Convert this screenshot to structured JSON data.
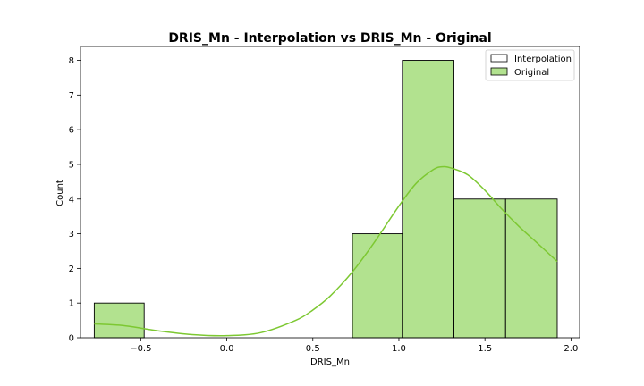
{
  "chart_data": {
    "type": "bar",
    "title": "DRIS_Mn - Interpolation vs DRIS_Mn - Original",
    "xlabel": "DRIS_Mn",
    "ylabel": "Count",
    "xlim": [
      -0.85,
      2.05
    ],
    "ylim": [
      0,
      8.4
    ],
    "x_ticks": [
      -0.5,
      0.0,
      0.5,
      1.0,
      1.5,
      2.0
    ],
    "x_tick_labels": [
      "−0.5",
      "0.0",
      "0.5",
      "1.0",
      "1.5",
      "2.0"
    ],
    "y_ticks": [
      0,
      1,
      2,
      3,
      4,
      5,
      6,
      7,
      8
    ],
    "y_tick_labels": [
      "0",
      "1",
      "2",
      "3",
      "4",
      "5",
      "6",
      "7",
      "8"
    ],
    "grid": false,
    "legend_position": "top-right",
    "series": [
      {
        "name": "Interpolation",
        "color": "#ffffff",
        "bins": []
      },
      {
        "name": "Original",
        "color": "#b2e28f",
        "edge_color": "#000000",
        "bins": [
          {
            "x0": -0.77,
            "x1": -0.48,
            "count": 1
          },
          {
            "x0": 0.73,
            "x1": 1.02,
            "count": 3
          },
          {
            "x0": 1.02,
            "x1": 1.32,
            "count": 8
          },
          {
            "x0": 1.32,
            "x1": 1.62,
            "count": 4
          },
          {
            "x0": 1.62,
            "x1": 1.92,
            "count": 4
          }
        ],
        "kde": {
          "color": "#7dc832",
          "x": [
            -0.77,
            -0.6,
            -0.4,
            -0.2,
            0.0,
            0.2,
            0.4,
            0.5,
            0.6,
            0.73,
            0.85,
            1.0,
            1.1,
            1.2,
            1.25,
            1.3,
            1.4,
            1.5,
            1.6,
            1.7,
            1.8,
            1.92
          ],
          "y": [
            0.4,
            0.35,
            0.2,
            0.09,
            0.06,
            0.15,
            0.5,
            0.8,
            1.2,
            1.9,
            2.7,
            3.8,
            4.45,
            4.85,
            4.93,
            4.9,
            4.7,
            4.25,
            3.7,
            3.2,
            2.75,
            2.2
          ]
        }
      }
    ]
  }
}
